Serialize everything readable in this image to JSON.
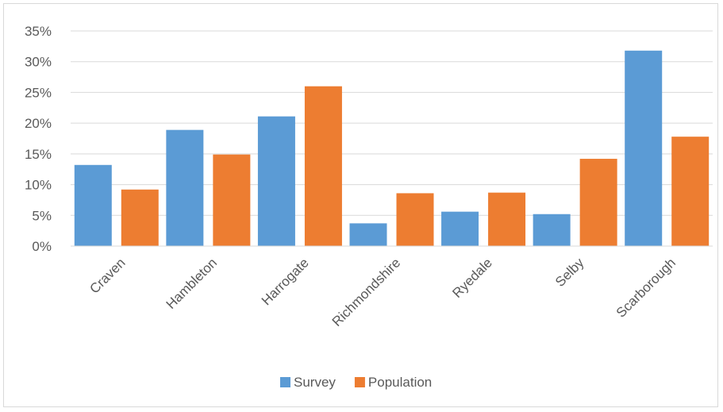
{
  "chart_data": {
    "type": "bar",
    "title": "",
    "xlabel": "",
    "ylabel": "",
    "categories": [
      "Craven",
      "Hambleton",
      "Harrogate",
      "Richmondshire",
      "Ryedale",
      "Selby",
      "Scarborough"
    ],
    "series": [
      {
        "name": "Survey",
        "color": "#5B9BD5",
        "values": [
          13.2,
          18.9,
          21.1,
          3.7,
          5.6,
          5.2,
          31.8
        ]
      },
      {
        "name": "Population",
        "color": "#ED7D31",
        "values": [
          9.2,
          14.9,
          26.0,
          8.6,
          8.7,
          14.2,
          17.8
        ]
      }
    ],
    "ylim": [
      0,
      35
    ],
    "yticks": [
      0,
      5,
      10,
      15,
      20,
      25,
      30,
      35
    ],
    "ytick_labels": [
      "0%",
      "5%",
      "10%",
      "15%",
      "20%",
      "25%",
      "30%",
      "35%"
    ],
    "grid": true,
    "legend_position": "bottom"
  }
}
